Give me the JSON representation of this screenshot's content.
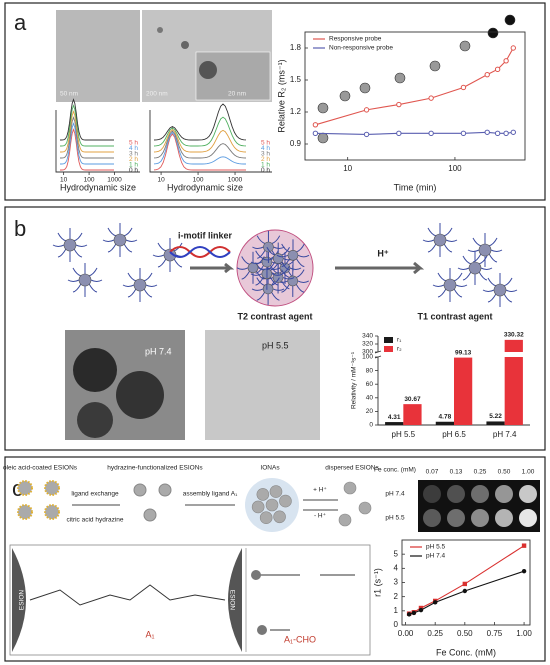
{
  "panels": [
    {
      "label": "a",
      "scale_bars": [
        "50 nm",
        "200 nm",
        "20 nm"
      ],
      "histogram_label": "Hydrodynamic size",
      "histogram_times": [
        "5 h",
        "4 h",
        "3 h",
        "2 h",
        "1 h",
        "0 h"
      ],
      "histogram_ticks": [
        "10",
        "100",
        "1000"
      ]
    },
    {
      "label": "b",
      "linker": "i-motif linker",
      "trigger": "H⁺",
      "t2": "T2 contrast agent",
      "t1": "T1 contrast agent",
      "tem": [
        "pH 7.4",
        "pH 5.5"
      ]
    },
    {
      "label": "c",
      "scheme": [
        "oleic acid-coated ESIONs",
        "ligand exchange",
        "citric acid hydrazine",
        "hydrazine-functionalized ESIONs",
        "assembly ligand A₁",
        "IONAs",
        "+ H⁺",
        "- H⁺",
        "dispersed ESIONs",
        "A₁",
        "A₁-CHO",
        "ESION",
        "ESION"
      ],
      "plate": {
        "header": "Fe conc. (mM)",
        "concentrations": [
          "0.07",
          "0.13",
          "0.25",
          "0.50",
          "1.00"
        ],
        "rows": [
          "pH 7.4",
          "pH 5.5"
        ]
      }
    }
  ],
  "chart_data": [
    {
      "type": "line",
      "xlabel": "Time (min)",
      "ylabel": "Relative R₂ (ms⁻¹)",
      "xscale": "log",
      "xlim": [
        4,
        450
      ],
      "ylim": [
        0.75,
        1.95
      ],
      "xticks": [
        10,
        100
      ],
      "yticks": [
        0.9,
        1.2,
        1.5,
        1.8
      ],
      "legend": "upper left",
      "series": [
        {
          "name": "Responsive probe",
          "color": "#e0564f",
          "x": [
            5,
            15,
            30,
            60,
            120,
            200,
            250,
            300,
            350
          ],
          "values": [
            1.08,
            1.22,
            1.27,
            1.33,
            1.43,
            1.55,
            1.6,
            1.68,
            1.8
          ]
        },
        {
          "name": "Non-responsive probe",
          "color": "#5a5fb0",
          "x": [
            5,
            15,
            30,
            60,
            120,
            200,
            250,
            300,
            350
          ],
          "values": [
            1.0,
            0.99,
            1.0,
            1.0,
            1.0,
            1.01,
            1.0,
            1.0,
            1.01
          ]
        }
      ]
    },
    {
      "type": "bar",
      "ylabel": "Relativity / mM⁻¹s⁻¹",
      "categories": [
        "pH 5.5",
        "pH 6.5",
        "pH 7.4"
      ],
      "ylim_lower": [
        0,
        100
      ],
      "ylim_upper": [
        300,
        340
      ],
      "yticks": [
        0,
        20,
        40,
        60,
        80,
        100,
        300,
        320,
        340
      ],
      "legend": "upper left",
      "series": [
        {
          "name": "r₁",
          "color": "#1a1a1a",
          "values": [
            4.31,
            4.78,
            5.22
          ]
        },
        {
          "name": "r₂",
          "color": "#e8333a",
          "values": [
            30.67,
            99.13,
            330.32
          ]
        }
      ]
    },
    {
      "type": "line",
      "xlabel": "Fe Conc. (mM)",
      "ylabel": "r1 (s⁻¹)",
      "xlim": [
        -0.03,
        1.05
      ],
      "ylim": [
        0,
        6
      ],
      "xticks": [
        {
          "value": 0,
          "label": "0.00"
        },
        0.25,
        {
          "value": 0.5,
          "label": "0.50"
        },
        0.75,
        {
          "value": 1,
          "label": "1.00"
        }
      ],
      "yticks": [
        0,
        1,
        2,
        3,
        4,
        5
      ],
      "legend": "upper left",
      "series": [
        {
          "name": "pH 5.5",
          "color": "#d9302f",
          "marker": "square",
          "x": [
            0.03,
            0.07,
            0.13,
            0.25,
            0.5,
            1.0
          ],
          "values": [
            0.8,
            0.9,
            1.2,
            1.7,
            2.9,
            5.6
          ]
        },
        {
          "name": "pH 7.4",
          "color": "#111111",
          "marker": "circle",
          "x": [
            0.03,
            0.07,
            0.13,
            0.25,
            0.5,
            1.0
          ],
          "values": [
            0.75,
            0.85,
            1.05,
            1.6,
            2.4,
            3.8
          ]
        }
      ]
    }
  ]
}
